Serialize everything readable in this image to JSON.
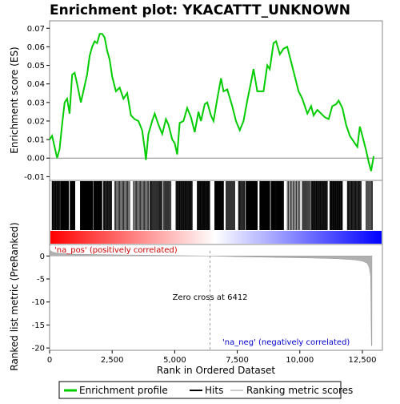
{
  "chart_data": {
    "type": "line",
    "title": "Enrichment plot: YKACATTT_UNKNOWN",
    "top_panel": {
      "ylabel": "Enrichment score (ES)",
      "ylim": [
        -0.012,
        0.074
      ],
      "yticks": [
        -0.01,
        0.0,
        0.01,
        0.02,
        0.03,
        0.04,
        0.05,
        0.06,
        0.07
      ],
      "ytick_labels": [
        "-0.01",
        "0.00",
        "0.01",
        "0.02",
        "0.03",
        "0.04",
        "0.05",
        "0.06",
        "0.07"
      ],
      "series_color": "#00cc00",
      "es_profile": [
        [
          0,
          0.01
        ],
        [
          100,
          0.012
        ],
        [
          200,
          0.006
        ],
        [
          300,
          0.0
        ],
        [
          400,
          0.005
        ],
        [
          500,
          0.018
        ],
        [
          600,
          0.03
        ],
        [
          700,
          0.032
        ],
        [
          800,
          0.024
        ],
        [
          900,
          0.045
        ],
        [
          1000,
          0.046
        ],
        [
          1100,
          0.04
        ],
        [
          1250,
          0.03
        ],
        [
          1350,
          0.036
        ],
        [
          1500,
          0.045
        ],
        [
          1600,
          0.055
        ],
        [
          1700,
          0.06
        ],
        [
          1800,
          0.063
        ],
        [
          1900,
          0.062
        ],
        [
          2000,
          0.067
        ],
        [
          2100,
          0.067
        ],
        [
          2200,
          0.065
        ],
        [
          2300,
          0.058
        ],
        [
          2400,
          0.053
        ],
        [
          2500,
          0.044
        ],
        [
          2650,
          0.036
        ],
        [
          2800,
          0.038
        ],
        [
          2950,
          0.032
        ],
        [
          3100,
          0.035
        ],
        [
          3250,
          0.023
        ],
        [
          3400,
          0.021
        ],
        [
          3550,
          0.02
        ],
        [
          3700,
          0.015
        ],
        [
          3800,
          0.005
        ],
        [
          3850,
          -0.001
        ],
        [
          3950,
          0.013
        ],
        [
          4100,
          0.02
        ],
        [
          4200,
          0.024
        ],
        [
          4350,
          0.018
        ],
        [
          4500,
          0.013
        ],
        [
          4650,
          0.021
        ],
        [
          4750,
          0.018
        ],
        [
          4900,
          0.01
        ],
        [
          5000,
          0.008
        ],
        [
          5100,
          0.002
        ],
        [
          5200,
          0.019
        ],
        [
          5350,
          0.02
        ],
        [
          5500,
          0.027
        ],
        [
          5650,
          0.022
        ],
        [
          5800,
          0.014
        ],
        [
          5950,
          0.025
        ],
        [
          6050,
          0.02
        ],
        [
          6200,
          0.029
        ],
        [
          6300,
          0.03
        ],
        [
          6450,
          0.023
        ],
        [
          6550,
          0.02
        ],
        [
          6700,
          0.032
        ],
        [
          6850,
          0.043
        ],
        [
          6950,
          0.036
        ],
        [
          7100,
          0.037
        ],
        [
          7300,
          0.028
        ],
        [
          7450,
          0.02
        ],
        [
          7600,
          0.015
        ],
        [
          7750,
          0.02
        ],
        [
          7900,
          0.031
        ],
        [
          8050,
          0.041
        ],
        [
          8150,
          0.048
        ],
        [
          8300,
          0.036
        ],
        [
          8400,
          0.036
        ],
        [
          8550,
          0.036
        ],
        [
          8700,
          0.05
        ],
        [
          8800,
          0.048
        ],
        [
          8950,
          0.062
        ],
        [
          9050,
          0.063
        ],
        [
          9200,
          0.056
        ],
        [
          9350,
          0.059
        ],
        [
          9500,
          0.06
        ],
        [
          9650,
          0.052
        ],
        [
          9800,
          0.044
        ],
        [
          9950,
          0.036
        ],
        [
          10100,
          0.032
        ],
        [
          10300,
          0.024
        ],
        [
          10450,
          0.028
        ],
        [
          10550,
          0.023
        ],
        [
          10700,
          0.026
        ],
        [
          10850,
          0.024
        ],
        [
          11000,
          0.022
        ],
        [
          11150,
          0.021
        ],
        [
          11300,
          0.028
        ],
        [
          11450,
          0.029
        ],
        [
          11550,
          0.031
        ],
        [
          11700,
          0.027
        ],
        [
          11850,
          0.018
        ],
        [
          12000,
          0.012
        ],
        [
          12150,
          0.009
        ],
        [
          12300,
          0.006
        ],
        [
          12400,
          0.017
        ],
        [
          12500,
          0.012
        ],
        [
          12650,
          0.004
        ],
        [
          12750,
          -0.002
        ],
        [
          12850,
          -0.007
        ],
        [
          12950,
          0.001
        ]
      ]
    },
    "hits_panel": {
      "hit_color": "#000000",
      "hit_regions": [
        [
          100,
          420,
          16
        ],
        [
          450,
          760,
          30
        ],
        [
          820,
          1010,
          22
        ],
        [
          1230,
          1720,
          70
        ],
        [
          1760,
          2090,
          24
        ],
        [
          2150,
          2480,
          14
        ],
        [
          2600,
          3200,
          16
        ],
        [
          3350,
          3950,
          16
        ],
        [
          4000,
          4500,
          18
        ],
        [
          4550,
          4850,
          10
        ],
        [
          5050,
          5700,
          30
        ],
        [
          5900,
          6400,
          26
        ],
        [
          6600,
          6950,
          24
        ],
        [
          7050,
          7400,
          12
        ],
        [
          7550,
          7800,
          10
        ],
        [
          7850,
          8300,
          34
        ],
        [
          8400,
          8800,
          30
        ],
        [
          8850,
          9350,
          34
        ],
        [
          9500,
          10000,
          12
        ],
        [
          10100,
          10400,
          10
        ],
        [
          10450,
          11100,
          30
        ],
        [
          11200,
          11700,
          26
        ],
        [
          11900,
          12450,
          22
        ],
        [
          12650,
          12900,
          8
        ]
      ],
      "gradient_colors": [
        "#ff0000",
        "#ffffff",
        "#0000ff"
      ]
    },
    "bottom_panel": {
      "ylabel": "Ranked list metric (PreRanked)",
      "ylim": [
        -20.5,
        2.5
      ],
      "yticks": [
        -20,
        -15,
        -10,
        -5,
        0
      ],
      "ytick_labels": [
        "-20",
        "-15",
        "-10",
        "-5",
        "0"
      ],
      "metric_profile": [
        [
          0,
          1.8
        ],
        [
          20,
          1.2
        ],
        [
          150,
          0.8
        ],
        [
          400,
          0.55
        ],
        [
          1000,
          0.4
        ],
        [
          2000,
          0.3
        ],
        [
          3500,
          0.2
        ],
        [
          5000,
          0.1
        ],
        [
          6412,
          0.0
        ],
        [
          7500,
          -0.15
        ],
        [
          9000,
          -0.3
        ],
        [
          10500,
          -0.45
        ],
        [
          11500,
          -0.6
        ],
        [
          12200,
          -0.85
        ],
        [
          12500,
          -1.1
        ],
        [
          12700,
          -1.6
        ],
        [
          12780,
          -2.6
        ],
        [
          12830,
          -4.5
        ],
        [
          12860,
          -19.5
        ],
        [
          12880,
          -19.5
        ]
      ],
      "zero_cross_label": "Zero cross at 6412",
      "zero_cross_rank": 6412,
      "pos_label": "'na_pos' (positively correlated)",
      "neg_label": "'na_neg' (negatively correlated)",
      "pos_label_color": "#cc0000",
      "neg_label_color": "#0000cc"
    },
    "xlabel": "Rank in Ordered Dataset",
    "xlim": [
      0,
      13300
    ],
    "xticks": [
      0,
      2500,
      5000,
      7500,
      10000,
      12500
    ],
    "xtick_labels": [
      "0",
      "2,500",
      "5,000",
      "7,500",
      "10,000",
      "12,500"
    ],
    "n_genes": 12900,
    "legend": {
      "placement": "bottom",
      "entries": [
        "Enrichment profile",
        "Hits",
        "Ranking metric scores"
      ]
    }
  }
}
